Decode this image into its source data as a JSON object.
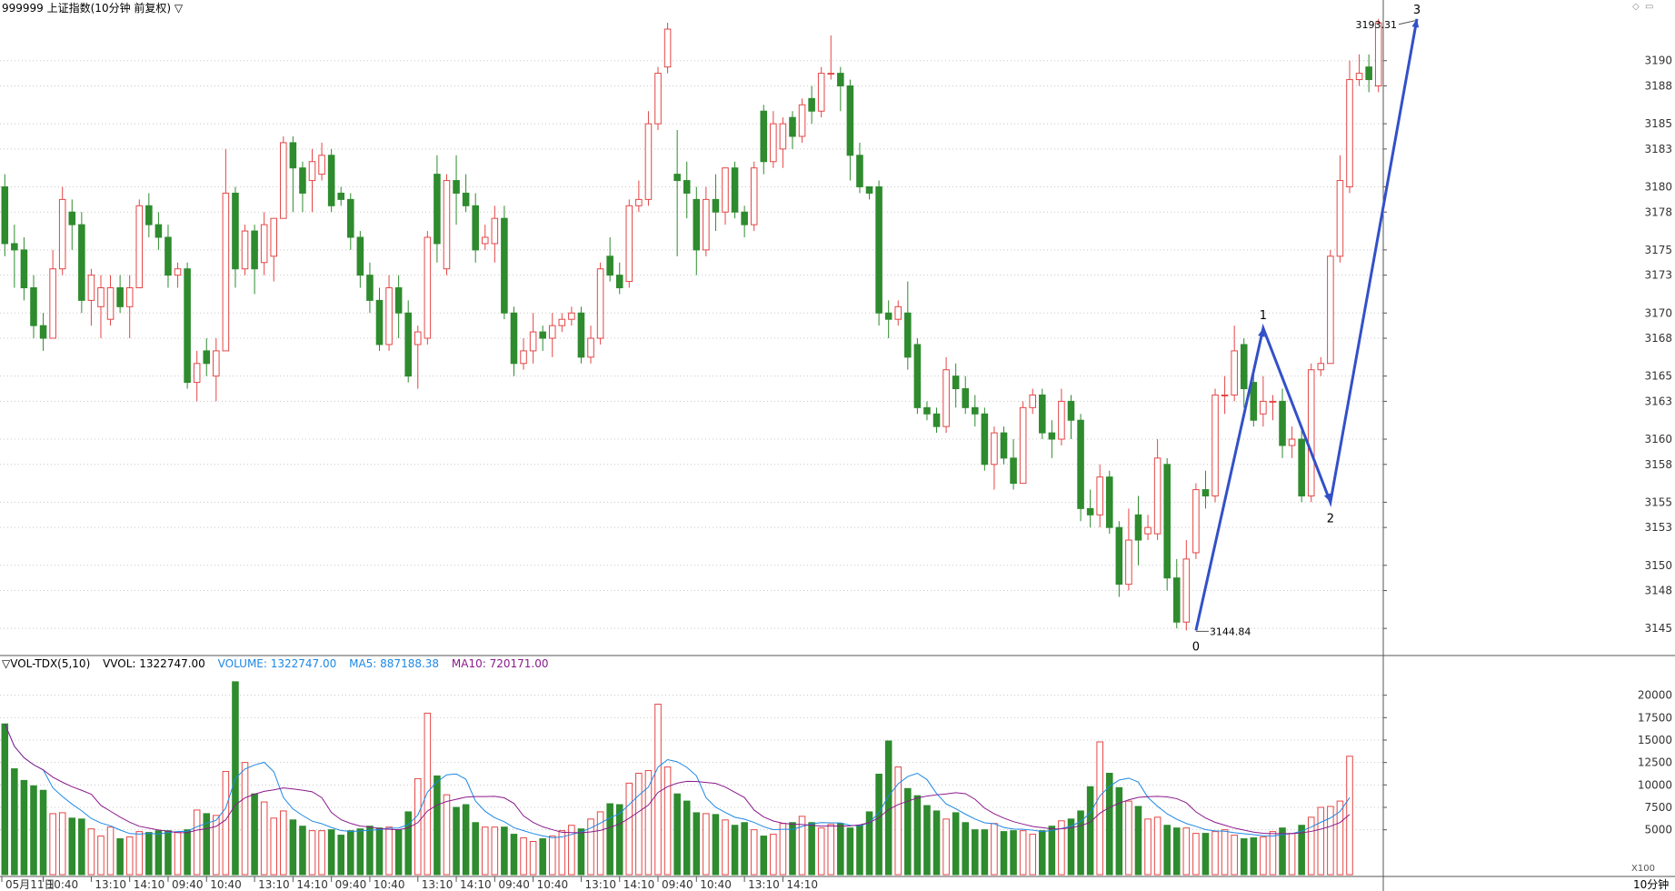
{
  "window": {
    "title": "999999 上证指数(10分钟 前复权) ▽",
    "period_label": "10分钟",
    "scale_label": "X100"
  },
  "icons": {
    "corner_left": "diamond-icon",
    "corner_right": "restore-icon"
  },
  "colors": {
    "up": "#e54646",
    "down": "#2e8b2e",
    "wave": "#3350c8",
    "ma5": "#1e88e5",
    "ma10": "#8b1a8b",
    "grid": "#c8c8c8",
    "axis": "#555555"
  },
  "volume_header": {
    "indicator": "▽VOL-TDX(5,10)",
    "vvol": "VVOL: 1322747.00",
    "volume": "VOLUME: 1322747.00",
    "ma5": "MA5: 887188.38",
    "ma10": "MA10: 720171.00"
  },
  "chart_data": [
    {
      "type": "candlestick",
      "y_ticks": [
        3145,
        3148,
        3150,
        3153,
        3155,
        3158,
        3160,
        3163,
        3165,
        3168,
        3170,
        3173,
        3175,
        3178,
        3180,
        3183,
        3185,
        3188,
        3190
      ],
      "ylim": [
        3143.5,
        3193.8
      ],
      "x_ticks": [
        "05月11日",
        "10:40",
        "13:10",
        "14:10",
        "09:40",
        "10:40",
        "13:10",
        "14:10",
        "09:40",
        "10:40",
        "13:10",
        "14:10",
        "09:40",
        "10:40",
        "13:10",
        "14:10",
        "09:40",
        "10:40",
        "13:10",
        "14:10"
      ],
      "x_tick_positions": [
        0,
        4,
        9,
        13,
        17,
        21,
        26,
        30,
        34,
        38,
        43,
        47,
        51,
        55,
        60,
        64,
        68,
        72,
        77,
        81
      ],
      "candles": [
        [
          3180.0,
          3175.5,
          3181.0,
          3174.5
        ],
        [
          3175.5,
          3175.0,
          3177.0,
          3172.0
        ],
        [
          3175.0,
          3172.0,
          3176.0,
          3171.0
        ],
        [
          3172.0,
          3169.0,
          3173.0,
          3168.0
        ],
        [
          3169.0,
          3168.0,
          3170.0,
          3167.0
        ],
        [
          3168.0,
          3173.5,
          3175.0,
          3168.0
        ],
        [
          3173.5,
          3179.0,
          3180.0,
          3173.0
        ],
        [
          3178.0,
          3177.0,
          3179.0,
          3175.0
        ],
        [
          3177.0,
          3171.0,
          3178.0,
          3170.0
        ],
        [
          3171.0,
          3173.0,
          3173.5,
          3169.0
        ],
        [
          3170.5,
          3172.0,
          3173.0,
          3168.0
        ],
        [
          3169.5,
          3172.0,
          3173.0,
          3169.0
        ],
        [
          3172.0,
          3170.5,
          3173.0,
          3170.0
        ],
        [
          3170.5,
          3172.0,
          3173.0,
          3168.0
        ],
        [
          3172.0,
          3178.5,
          3179.0,
          3172.0
        ],
        [
          3178.5,
          3177.0,
          3179.5,
          3176.0
        ],
        [
          3177.0,
          3176.0,
          3178.0,
          3175.0
        ],
        [
          3176.0,
          3173.0,
          3177.0,
          3172.0
        ],
        [
          3173.0,
          3173.5,
          3174.0,
          3172.0
        ],
        [
          3173.5,
          3164.5,
          3174.0,
          3164.0
        ],
        [
          3164.5,
          3166.0,
          3167.0,
          3163.0
        ],
        [
          3167.0,
          3166.0,
          3168.0,
          3165.0
        ],
        [
          3165.0,
          3167.0,
          3168.0,
          3163.0
        ],
        [
          3167.0,
          3179.5,
          3183.0,
          3167.0
        ],
        [
          3179.5,
          3173.5,
          3180.0,
          3172.0
        ],
        [
          3173.5,
          3176.5,
          3177.0,
          3173.0
        ],
        [
          3176.5,
          3173.5,
          3177.0,
          3171.5
        ],
        [
          3174.0,
          3177.0,
          3178.0,
          3173.0
        ],
        [
          3174.5,
          3177.5,
          3177.5,
          3172.5
        ],
        [
          3177.5,
          3183.5,
          3184.0,
          3177.5
        ],
        [
          3183.5,
          3181.5,
          3184.0,
          3178.0
        ],
        [
          3181.5,
          3179.5,
          3182.0,
          3178.0
        ],
        [
          3180.5,
          3182.0,
          3183.0,
          3178.0
        ],
        [
          3181.0,
          3182.5,
          3183.5,
          3180.5
        ],
        [
          3182.5,
          3178.5,
          3183.0,
          3178.0
        ],
        [
          3179.5,
          3179.0,
          3180.0,
          3178.5
        ],
        [
          3179.0,
          3176.0,
          3179.5,
          3175.0
        ],
        [
          3176.0,
          3173.0,
          3176.5,
          3172.0
        ],
        [
          3173.0,
          3171.0,
          3174.0,
          3170.0
        ],
        [
          3171.0,
          3167.5,
          3172.0,
          3167.0
        ],
        [
          3167.5,
          3172.0,
          3173.0,
          3167.0
        ],
        [
          3172.0,
          3170.0,
          3173.0,
          3168.0
        ],
        [
          3170.0,
          3165.0,
          3171.0,
          3164.5
        ],
        [
          3167.5,
          3168.5,
          3169.0,
          3164.0
        ],
        [
          3168.0,
          3176.0,
          3176.5,
          3167.5
        ],
        [
          3181.0,
          3175.5,
          3182.5,
          3174.0
        ],
        [
          3173.5,
          3180.5,
          3181.0,
          3173.0
        ],
        [
          3180.5,
          3179.5,
          3182.5,
          3177.0
        ],
        [
          3179.5,
          3178.5,
          3181.0,
          3178.0
        ],
        [
          3178.5,
          3175.0,
          3179.5,
          3174.0
        ],
        [
          3175.5,
          3176.0,
          3177.0,
          3175.0
        ],
        [
          3175.5,
          3177.5,
          3178.5,
          3174.0
        ],
        [
          3177.5,
          3170.0,
          3178.5,
          3169.5
        ],
        [
          3170.0,
          3166.0,
          3170.5,
          3165.0
        ],
        [
          3166.0,
          3167.0,
          3168.0,
          3165.5
        ],
        [
          3167.0,
          3168.5,
          3170.0,
          3166.0
        ],
        [
          3168.5,
          3168.0,
          3169.0,
          3167.0
        ],
        [
          3168.0,
          3169.0,
          3170.0,
          3166.5
        ],
        [
          3169.0,
          3169.5,
          3170.0,
          3168.5
        ],
        [
          3169.5,
          3170.0,
          3170.5,
          3169.0
        ],
        [
          3170.0,
          3166.5,
          3170.5,
          3166.0
        ],
        [
          3166.5,
          3168.0,
          3169.0,
          3166.0
        ],
        [
          3168.0,
          3173.5,
          3174.0,
          3167.5
        ],
        [
          3174.5,
          3173.0,
          3176.0,
          3172.5
        ],
        [
          3173.0,
          3172.0,
          3174.0,
          3171.5
        ],
        [
          3172.5,
          3178.5,
          3179.0,
          3172.0
        ],
        [
          3178.5,
          3179.0,
          3180.5,
          3178.0
        ],
        [
          3179.0,
          3185.0,
          3186.0,
          3178.5
        ],
        [
          3185.0,
          3189.0,
          3189.5,
          3184.5
        ],
        [
          3189.5,
          3192.5,
          3193.0,
          3189.0
        ],
        [
          3181.0,
          3180.5,
          3184.5,
          3174.5
        ],
        [
          3180.5,
          3179.5,
          3182.0,
          3177.5
        ],
        [
          3179.0,
          3175.0,
          3180.0,
          3173.0
        ],
        [
          3175.0,
          3179.0,
          3180.0,
          3174.5
        ],
        [
          3179.0,
          3178.0,
          3181.0,
          3176.5
        ],
        [
          3178.0,
          3181.5,
          3181.5,
          3177.0
        ],
        [
          3181.5,
          3178.0,
          3182.0,
          3177.5
        ],
        [
          3178.0,
          3177.0,
          3178.5,
          3176.0
        ],
        [
          3177.0,
          3181.5,
          3182.0,
          3176.5
        ],
        [
          3186.0,
          3182.0,
          3186.5,
          3181.0
        ],
        [
          3182.0,
          3185.0,
          3186.0,
          3181.5
        ],
        [
          3183.0,
          3185.0,
          3185.5,
          3181.5
        ],
        [
          3185.5,
          3184.0,
          3186.0,
          3183.0
        ],
        [
          3184.0,
          3186.5,
          3187.0,
          3183.5
        ],
        [
          3187.0,
          3186.0,
          3188.0,
          3185.0
        ],
        [
          3186.0,
          3189.0,
          3189.5,
          3185.5
        ],
        [
          3189.0,
          3189.0,
          3192.0,
          3188.5
        ],
        [
          3189.0,
          3188.0,
          3189.5,
          3186.0
        ],
        [
          3188.0,
          3182.5,
          3188.5,
          3180.5
        ],
        [
          3182.5,
          3180.0,
          3183.5,
          3179.5
        ],
        [
          3180.0,
          3179.5,
          3180.0,
          3179.0
        ],
        [
          3180.0,
          3170.0,
          3180.5,
          3169.0
        ],
        [
          3170.0,
          3169.5,
          3171.0,
          3168.0
        ],
        [
          3169.5,
          3170.5,
          3171.0,
          3169.0
        ],
        [
          3170.0,
          3166.5,
          3172.5,
          3165.5
        ],
        [
          3167.5,
          3162.5,
          3168.0,
          3162.0
        ],
        [
          3162.5,
          3162.0,
          3163.0,
          3161.5
        ],
        [
          3162.0,
          3161.0,
          3162.5,
          3160.5
        ],
        [
          3161.0,
          3165.5,
          3166.5,
          3160.5
        ],
        [
          3165.0,
          3164.0,
          3166.0,
          3162.5
        ],
        [
          3164.0,
          3162.5,
          3165.0,
          3162.0
        ],
        [
          3162.5,
          3162.0,
          3163.5,
          3161.0
        ],
        [
          3162.0,
          3158.0,
          3162.5,
          3157.5
        ],
        [
          3158.0,
          3160.5,
          3161.0,
          3156.0
        ],
        [
          3160.5,
          3158.5,
          3161.0,
          3158.0
        ],
        [
          3158.5,
          3156.5,
          3160.0,
          3156.0
        ],
        [
          3156.5,
          3162.5,
          3163.0,
          3156.5
        ],
        [
          3162.5,
          3163.5,
          3164.0,
          3162.0
        ],
        [
          3163.5,
          3160.5,
          3164.0,
          3160.0
        ],
        [
          3160.5,
          3160.0,
          3161.5,
          3158.5
        ],
        [
          3160.0,
          3163.0,
          3164.0,
          3159.5
        ],
        [
          3163.0,
          3161.5,
          3163.5,
          3160.0
        ],
        [
          3161.5,
          3154.5,
          3162.0,
          3153.5
        ],
        [
          3154.5,
          3154.0,
          3156.0,
          3153.0
        ],
        [
          3154.0,
          3157.0,
          3158.0,
          3153.0
        ],
        [
          3157.0,
          3153.0,
          3157.5,
          3152.5
        ],
        [
          3153.0,
          3148.5,
          3153.5,
          3147.5
        ],
        [
          3148.5,
          3152.0,
          3154.5,
          3148.0
        ],
        [
          3154.0,
          3152.0,
          3155.5,
          3150.0
        ],
        [
          3152.5,
          3153.0,
          3154.0,
          3152.0
        ],
        [
          3152.5,
          3158.5,
          3160.0,
          3152.0
        ],
        [
          3158.0,
          3149.0,
          3158.5,
          3148.0
        ],
        [
          3149.0,
          3145.5,
          3150.5,
          3145.0
        ],
        [
          3145.5,
          3150.5,
          3152.0,
          3144.84
        ],
        [
          3151.0,
          3156.0,
          3156.5,
          3150.5
        ],
        [
          3156.0,
          3155.5,
          3157.5,
          3154.5
        ],
        [
          3155.5,
          3163.5,
          3164.0,
          3155.0
        ],
        [
          3163.5,
          3163.5,
          3165.0,
          3162.0
        ],
        [
          3163.5,
          3167.0,
          3169.0,
          3163.0
        ],
        [
          3167.5,
          3164.0,
          3168.0,
          3162.5
        ],
        [
          3164.5,
          3161.5,
          3165.5,
          3161.0
        ],
        [
          3162.0,
          3163.0,
          3165.0,
          3161.0
        ],
        [
          3163.0,
          3163.0,
          3163.5,
          3161.5
        ],
        [
          3163.0,
          3159.5,
          3164.0,
          3158.5
        ],
        [
          3159.5,
          3160.0,
          3161.0,
          3158.5
        ],
        [
          3160.0,
          3155.5,
          3161.0,
          3155.0
        ],
        [
          3155.5,
          3165.5,
          3166.0,
          3155.0
        ],
        [
          3165.5,
          3166.0,
          3166.5,
          3165.0
        ],
        [
          3166.0,
          3174.5,
          3175.0,
          3166.0
        ],
        [
          3174.5,
          3180.5,
          3182.5,
          3174.0
        ],
        [
          3180.0,
          3188.5,
          3190.0,
          3179.5
        ],
        [
          3188.5,
          3189.0,
          3190.5,
          3188.0
        ],
        [
          3189.5,
          3188.5,
          3190.5,
          3187.5
        ],
        [
          3188.0,
          3193.0,
          3193.31,
          3187.5
        ]
      ],
      "wave_points": [
        {
          "label": "0",
          "bar": 124,
          "value": 3144.84
        },
        {
          "label": "1",
          "bar": 131,
          "value": 3168.8
        },
        {
          "label": "2",
          "bar": 138,
          "value": 3155.0
        },
        {
          "label": "3",
          "bar": 147,
          "value": 3193.31
        }
      ],
      "low_annotation": "3144.84",
      "high_annotation": "3193.31"
    },
    {
      "type": "bar",
      "name": "VOL-TDX",
      "y_ticks": [
        5000,
        7500,
        10000,
        12500,
        15000,
        17500,
        20000
      ],
      "ylim": [
        0,
        22500
      ],
      "volumes": [
        16800,
        11800,
        10500,
        9900,
        9400,
        6800,
        6900,
        6300,
        6200,
        5100,
        4300,
        5300,
        4000,
        4200,
        4800,
        4700,
        4900,
        4900,
        4700,
        5000,
        7200,
        6800,
        6600,
        11500,
        21500,
        12500,
        9000,
        8100,
        6300,
        7100,
        6100,
        5400,
        4900,
        4900,
        5000,
        4400,
        4900,
        5100,
        5400,
        5200,
        5300,
        5000,
        7000,
        10700,
        18000,
        11000,
        8900,
        7500,
        7800,
        5800,
        5300,
        5300,
        5300,
        4500,
        4100,
        3700,
        4000,
        4300,
        4900,
        5500,
        5100,
        6200,
        7000,
        7900,
        7800,
        10200,
        11300,
        11600,
        19000,
        12000,
        9000,
        8200,
        6900,
        6800,
        6700,
        6100,
        5500,
        5800,
        5000,
        4300,
        4500,
        5700,
        5800,
        6500,
        5800,
        5200,
        5600,
        5700,
        5200,
        5500,
        7000,
        11200,
        14900,
        12000,
        9600,
        8800,
        7700,
        7100,
        6200,
        6900,
        5800,
        5000,
        5000,
        5700,
        4800,
        4900,
        4900,
        4500,
        4900,
        5400,
        6000,
        6200,
        7100,
        9800,
        14800,
        11300,
        9700,
        8200,
        7600,
        6200,
        6400,
        5500,
        5200,
        5200,
        4600,
        4600,
        4800,
        5000,
        4400,
        4000,
        4100,
        4200,
        4800,
        5200,
        4600,
        5500,
        6400,
        7500,
        7600,
        8200,
        13200
      ],
      "series": [
        {
          "name": "MA5",
          "values": []
        },
        {
          "name": "MA10",
          "values": []
        }
      ]
    }
  ]
}
